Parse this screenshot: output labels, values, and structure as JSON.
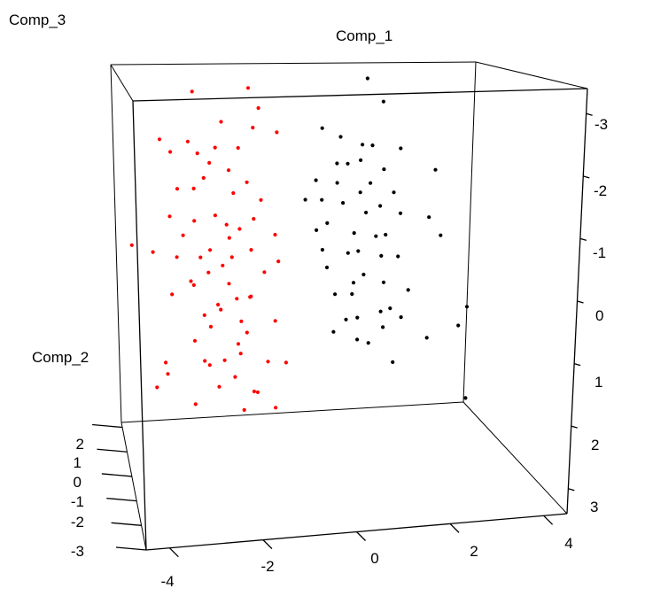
{
  "chart_data": {
    "type": "scatter",
    "projection": "3d",
    "title": "",
    "axes": {
      "x": {
        "label": "Comp_1",
        "range": [
          -4.5,
          4.5
        ],
        "ticks": [
          "-4",
          "-2",
          "0",
          "2",
          "4"
        ]
      },
      "y": {
        "label": "Comp_2",
        "range": [
          -3,
          2.2
        ],
        "ticks": [
          "2",
          "1",
          "0",
          "-1",
          "-2",
          "-3"
        ]
      },
      "z": {
        "label": "Comp_3",
        "range": [
          -3.4,
          3.4
        ],
        "ticks": [
          "-3",
          "-2",
          "-1",
          "0",
          "1",
          "2",
          "3"
        ]
      }
    },
    "grid": false,
    "legend": "none",
    "series": [
      {
        "color": "#ff0000",
        "points": [
          [
            -2.8,
            0.6,
            -3.1
          ],
          [
            -1.6,
            0.2,
            -3.2
          ],
          [
            -1.3,
            0.5,
            -2.8
          ],
          [
            -2.2,
            0.3,
            -2.6
          ],
          [
            -3.6,
            0.4,
            -2.3
          ],
          [
            -3.0,
            0.1,
            -2.3
          ],
          [
            -2.4,
            0.0,
            -2.2
          ],
          [
            -1.9,
            -0.1,
            -2.2
          ],
          [
            -1.5,
            0.2,
            -2.5
          ],
          [
            -1.1,
            -0.4,
            -2.5
          ],
          [
            -3.3,
            0.8,
            -2.0
          ],
          [
            -2.7,
            0.6,
            -2.0
          ],
          [
            -2.5,
            0.2,
            -1.9
          ],
          [
            -2.1,
            0.0,
            -1.8
          ],
          [
            -2.6,
            0.4,
            -1.6
          ],
          [
            -3.2,
            0.5,
            -1.4
          ],
          [
            -2.9,
            0.0,
            -1.5
          ],
          [
            -2.0,
            0.0,
            -1.4
          ],
          [
            -1.6,
            0.4,
            -1.5
          ],
          [
            -1.3,
            0.3,
            -1.2
          ],
          [
            -3.5,
            -0.3,
            -1.1
          ],
          [
            -2.4,
            0.1,
            -1.0
          ],
          [
            -2.8,
            0.6,
            -0.8
          ],
          [
            -2.2,
            -0.2,
            -0.9
          ],
          [
            -1.8,
            0.3,
            -0.7
          ],
          [
            -1.4,
            0.6,
            -0.8
          ],
          [
            -1.0,
            0.2,
            -0.6
          ],
          [
            -3.1,
            0.4,
            -0.6
          ],
          [
            -2.6,
            -0.3,
            -0.5
          ],
          [
            -2.0,
            0.5,
            -0.5
          ],
          [
            -1.6,
            0.0,
            -0.4
          ],
          [
            -3.8,
            0.5,
            -0.3
          ],
          [
            -3.3,
            0.1,
            -0.3
          ],
          [
            -2.7,
            0.4,
            -0.2
          ],
          [
            -2.3,
            -0.2,
            -0.2
          ],
          [
            -1.9,
            0.7,
            -0.1
          ],
          [
            -1.3,
            0.0,
            0.0
          ],
          [
            -0.9,
            0.3,
            -0.1
          ],
          [
            -3.0,
            0.0,
            0.1
          ],
          [
            -2.5,
            0.5,
            0.1
          ],
          [
            -2.1,
            0.1,
            0.2
          ],
          [
            -1.7,
            -0.4,
            0.3
          ],
          [
            -3.4,
            0.3,
            0.4
          ],
          [
            -2.8,
            0.8,
            0.4
          ],
          [
            -2.4,
            -0.1,
            0.5
          ],
          [
            -1.9,
            0.2,
            0.5
          ],
          [
            -1.5,
            0.6,
            0.6
          ],
          [
            -2.7,
            0.0,
            0.7
          ],
          [
            -2.2,
            0.6,
            0.8
          ],
          [
            -1.8,
            0.2,
            0.9
          ],
          [
            -1.1,
            -0.2,
            0.8
          ],
          [
            -2.5,
            0.3,
            1.0
          ],
          [
            -2.0,
            -0.4,
            1.1
          ],
          [
            -1.6,
            0.5,
            1.2
          ],
          [
            -2.9,
            0.2,
            1.2
          ],
          [
            -2.3,
            -0.3,
            1.4
          ],
          [
            -1.8,
            0.3,
            1.5
          ],
          [
            -1.2,
            0.1,
            1.6
          ],
          [
            -2.6,
            0.6,
            1.7
          ],
          [
            -2.0,
            0.0,
            1.8
          ],
          [
            -1.6,
            -0.2,
            2.0
          ],
          [
            -3.5,
            0.9,
            1.8
          ],
          [
            -2.3,
            0.4,
            2.1
          ],
          [
            -1.9,
            -0.5,
            2.2
          ],
          [
            -1.4,
            0.3,
            2.2
          ],
          [
            -0.8,
            0.0,
            1.6
          ],
          [
            -3.6,
            1.8,
            2.6
          ],
          [
            -3.3,
            1.9,
            2.4
          ],
          [
            -2.6,
            1.9,
            3.0
          ],
          [
            -0.5,
            2.0,
            3.2
          ],
          [
            -4.6,
            -2.9,
            -1.2
          ],
          [
            -3.0,
            -2.5,
            0.8
          ]
        ]
      },
      {
        "color": "#000000",
        "points": [
          [
            1.2,
            0.5,
            -3.3
          ],
          [
            1.5,
            0.3,
            -2.9
          ],
          [
            0.2,
            0.6,
            -2.4
          ],
          [
            0.5,
            0.2,
            -2.3
          ],
          [
            0.9,
            -0.1,
            -2.2
          ],
          [
            1.3,
            0.4,
            -2.1
          ],
          [
            1.8,
            0.0,
            -2.1
          ],
          [
            0.3,
            -0.2,
            -1.9
          ],
          [
            0.7,
            0.3,
            -1.8
          ],
          [
            1.1,
            0.6,
            -1.8
          ],
          [
            1.5,
            0.2,
            -1.7
          ],
          [
            2.6,
            0.0,
            -1.7
          ],
          [
            0.0,
            0.4,
            -1.5
          ],
          [
            0.4,
            0.1,
            -1.5
          ],
          [
            0.8,
            -0.3,
            -1.4
          ],
          [
            1.3,
            0.5,
            -1.4
          ],
          [
            1.7,
            0.1,
            -1.3
          ],
          [
            -0.3,
            0.2,
            -1.2
          ],
          [
            0.2,
            0.6,
            -1.1
          ],
          [
            0.6,
            0.3,
            -1.1
          ],
          [
            1.0,
            -0.1,
            -1.0
          ],
          [
            1.5,
            0.4,
            -1.0
          ],
          [
            1.9,
            0.2,
            -0.9
          ],
          [
            2.4,
            -0.2,
            -0.9
          ],
          [
            -0.1,
            0.0,
            -0.7
          ],
          [
            0.3,
            0.5,
            -0.7
          ],
          [
            0.8,
            0.1,
            -0.6
          ],
          [
            1.2,
            -0.2,
            -0.6
          ],
          [
            1.6,
            0.3,
            -0.5
          ],
          [
            2.8,
            0.1,
            -0.5
          ],
          [
            0.1,
            0.2,
            -0.3
          ],
          [
            0.6,
            -0.1,
            -0.3
          ],
          [
            1.0,
            0.4,
            -0.2
          ],
          [
            1.4,
            0.0,
            -0.2
          ],
          [
            1.9,
            0.3,
            -0.1
          ],
          [
            0.3,
            0.5,
            0.1
          ],
          [
            0.7,
            -0.2,
            0.2
          ],
          [
            1.1,
            0.3,
            0.2
          ],
          [
            1.5,
            0.1,
            0.3
          ],
          [
            2.0,
            -0.1,
            0.4
          ],
          [
            0.4,
            0.2,
            0.5
          ],
          [
            0.9,
            0.5,
            0.6
          ],
          [
            1.3,
            -0.3,
            0.7
          ],
          [
            1.7,
            0.2,
            0.8
          ],
          [
            0.6,
            0.0,
            0.9
          ],
          [
            1.0,
            0.4,
            1.0
          ],
          [
            1.5,
            0.1,
            1.1
          ],
          [
            2.0,
            0.3,
            1.0
          ],
          [
            0.8,
            -0.2,
            1.2
          ],
          [
            1.2,
            0.2,
            1.4
          ],
          [
            0.5,
            0.6,
            1.3
          ],
          [
            2.5,
            0.0,
            1.3
          ],
          [
            3.6,
            0.4,
            0.9
          ],
          [
            3.5,
            0.6,
            1.3
          ],
          [
            2.7,
            -1.8,
            1.8
          ],
          [
            1.6,
            -0.3,
            1.6
          ]
        ]
      }
    ]
  }
}
